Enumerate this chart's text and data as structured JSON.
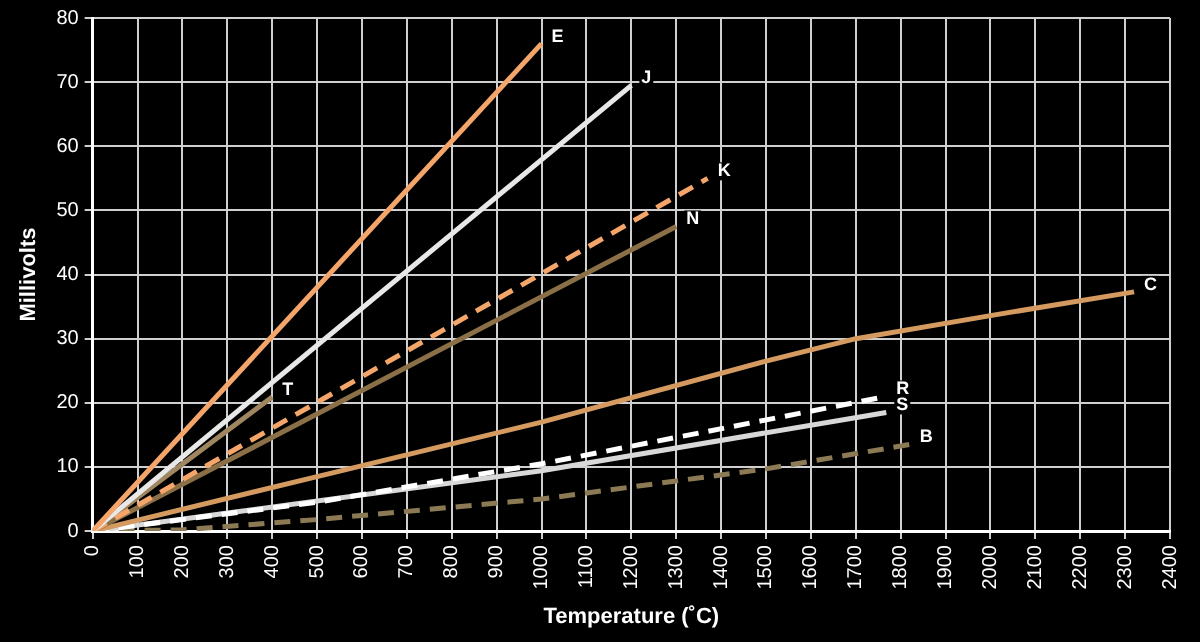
{
  "chart_data": {
    "type": "line",
    "xlabel": "Temperature (˚C)",
    "ylabel": "Millivolts",
    "xlim": [
      0,
      2400
    ],
    "xticks": [
      0,
      100,
      200,
      300,
      400,
      500,
      600,
      700,
      800,
      900,
      1000,
      1100,
      1200,
      1300,
      1400,
      1500,
      1600,
      1700,
      1800,
      1900,
      2000,
      2100,
      2200,
      2300,
      2400
    ],
    "ylim": [
      0,
      80
    ],
    "yticks": [
      0,
      10,
      20,
      30,
      40,
      50,
      60,
      70,
      80
    ],
    "grid": true,
    "legend": false,
    "marker": "none",
    "series": [
      {
        "name": "E",
        "color": "#f4a56a",
        "line_style": "solid",
        "x": [
          0,
          1000
        ],
        "values": [
          0,
          76
        ]
      },
      {
        "name": "J",
        "color": "#e8e8e8",
        "line_style": "solid",
        "x": [
          0,
          1200
        ],
        "values": [
          0,
          69.5
        ]
      },
      {
        "name": "K",
        "color": "#f4a56a",
        "line_style": "dashed",
        "x": [
          0,
          1370
        ],
        "values": [
          0,
          55
        ]
      },
      {
        "name": "N",
        "color": "#8b6f47",
        "line_style": "solid",
        "x": [
          0,
          1300
        ],
        "values": [
          0,
          47.5
        ]
      },
      {
        "name": "T",
        "color": "#a08660",
        "line_style": "solid",
        "x": [
          0,
          400
        ],
        "values": [
          0,
          20.9
        ]
      },
      {
        "name": "C",
        "color": "#d49a60",
        "line_style": "solid",
        "x": [
          0,
          500,
          1000,
          1500,
          1700,
          2000,
          2320
        ],
        "values": [
          0,
          8.5,
          17,
          26.5,
          30,
          33.6,
          37.3
        ]
      },
      {
        "name": "R",
        "color": "#ffffff",
        "line_style": "dashed",
        "x": [
          0,
          500,
          1000,
          1768
        ],
        "values": [
          0,
          4.5,
          10.5,
          21
        ]
      },
      {
        "name": "S",
        "color": "#d8d8d8",
        "line_style": "solid",
        "x": [
          0,
          1000,
          1768
        ],
        "values": [
          0,
          9.4,
          18.5
        ]
      },
      {
        "name": "B",
        "color": "#8c7a55",
        "line_style": "dashed",
        "x": [
          0,
          200,
          500,
          1000,
          1500,
          1820
        ],
        "values": [
          0,
          0.2,
          1.8,
          5,
          9.7,
          13.5
        ]
      }
    ]
  }
}
